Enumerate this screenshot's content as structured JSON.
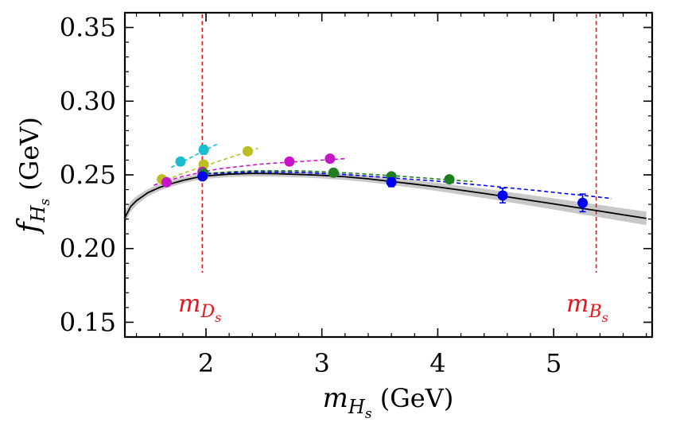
{
  "chart_data": {
    "type": "scatter",
    "title": "",
    "xlabel": {
      "main": "m",
      "sub": "H",
      "subsub": "s",
      "unit": "(GeV)"
    },
    "ylabel": {
      "main": "f",
      "sub": "H",
      "subsub": "s",
      "unit": "(GeV)"
    },
    "xlim": [
      1.3,
      5.85
    ],
    "ylim": [
      0.14,
      0.36
    ],
    "x_ticks": [
      2,
      3,
      4,
      5
    ],
    "x_tick_labels": [
      "2",
      "3",
      "4",
      "5"
    ],
    "y_ticks": [
      0.15,
      0.2,
      0.25,
      0.3,
      0.35
    ],
    "y_tick_labels": [
      "0.15",
      "0.20",
      "0.25",
      "0.30",
      "0.35"
    ],
    "grid": false,
    "markers": [
      {
        "x": 1.968,
        "label": {
          "main": "m",
          "sub": "D",
          "subsub": "s"
        },
        "color": "#e8141b"
      },
      {
        "x": 5.367,
        "label": {
          "main": "m",
          "sub": "B",
          "subsub": "s"
        },
        "color": "#e8141b"
      }
    ],
    "fit_curve": {
      "name": "continuum fit",
      "color": "#000000",
      "band_color": "#c8c8c8",
      "points": [
        [
          1.3,
          0.221
        ],
        [
          1.35,
          0.2285
        ],
        [
          1.4,
          0.2325
        ],
        [
          1.5,
          0.238
        ],
        [
          1.6,
          0.2415
        ],
        [
          1.7,
          0.244
        ],
        [
          1.8,
          0.2462
        ],
        [
          1.9,
          0.248
        ],
        [
          2.0,
          0.2493
        ],
        [
          2.2,
          0.2505
        ],
        [
          2.4,
          0.251
        ],
        [
          2.6,
          0.2508
        ],
        [
          2.8,
          0.2503
        ],
        [
          3.0,
          0.2497
        ],
        [
          3.2,
          0.2487
        ],
        [
          3.4,
          0.2473
        ],
        [
          3.6,
          0.2455
        ],
        [
          3.8,
          0.2437
        ],
        [
          4.0,
          0.2418
        ],
        [
          4.2,
          0.2396
        ],
        [
          4.4,
          0.2374
        ],
        [
          4.6,
          0.2351
        ],
        [
          4.8,
          0.2327
        ],
        [
          5.0,
          0.2303
        ],
        [
          5.2,
          0.2278
        ],
        [
          5.4,
          0.2254
        ],
        [
          5.6,
          0.2229
        ],
        [
          5.8,
          0.2205
        ]
      ],
      "band_halfwidth": [
        0.004,
        0.0035,
        0.003,
        0.0025,
        0.0022,
        0.002,
        0.002,
        0.002,
        0.002,
        0.002,
        0.002,
        0.002,
        0.002,
        0.0021,
        0.0022,
        0.0023,
        0.0024,
        0.0026,
        0.0028,
        0.003,
        0.0032,
        0.0034,
        0.0036,
        0.0038,
        0.004,
        0.0042,
        0.0044,
        0.0046
      ]
    },
    "series": [
      {
        "name": "cyan",
        "color": "#17becf",
        "points": [
          {
            "x": 1.78,
            "y": 0.259,
            "err": 0
          },
          {
            "x": 1.98,
            "y": 0.267,
            "err": 0.003
          }
        ],
        "fit_line": [
          [
            1.7,
            0.255
          ],
          [
            2.1,
            0.271
          ]
        ]
      },
      {
        "name": "olive",
        "color": "#bcbd22",
        "points": [
          {
            "x": 1.62,
            "y": 0.247,
            "err": 0
          },
          {
            "x": 1.98,
            "y": 0.257,
            "err": 0
          },
          {
            "x": 2.36,
            "y": 0.266,
            "err": 0
          }
        ],
        "fit_line": [
          [
            1.55,
            0.243
          ],
          [
            1.8,
            0.251
          ],
          [
            2.1,
            0.259
          ],
          [
            2.45,
            0.268
          ]
        ]
      },
      {
        "name": "magenta",
        "color": "#c815c8",
        "points": [
          {
            "x": 1.66,
            "y": 0.245,
            "err": 0
          },
          {
            "x": 1.97,
            "y": 0.252,
            "err": 0
          },
          {
            "x": 2.72,
            "y": 0.259,
            "err": 0
          },
          {
            "x": 3.07,
            "y": 0.261,
            "err": 0
          }
        ],
        "fit_line": [
          [
            1.55,
            0.243
          ],
          [
            1.8,
            0.249
          ],
          [
            2.1,
            0.254
          ],
          [
            2.5,
            0.2575
          ],
          [
            2.9,
            0.2595
          ],
          [
            3.2,
            0.261
          ]
        ]
      },
      {
        "name": "green",
        "color": "#1e7f1e",
        "points": [
          {
            "x": 1.98,
            "y": 0.251,
            "err": 0
          },
          {
            "x": 3.1,
            "y": 0.2515,
            "err": 0
          },
          {
            "x": 3.6,
            "y": 0.249,
            "err": 0
          },
          {
            "x": 4.1,
            "y": 0.247,
            "err": 0.002
          }
        ],
        "fit_line": [
          [
            1.95,
            0.2508
          ],
          [
            2.4,
            0.2528
          ],
          [
            2.8,
            0.2528
          ],
          [
            3.2,
            0.2514
          ],
          [
            3.6,
            0.2495
          ],
          [
            4.0,
            0.2472
          ],
          [
            4.3,
            0.2455
          ]
        ]
      },
      {
        "name": "blue",
        "color": "#0000ee",
        "points": [
          {
            "x": 1.97,
            "y": 0.249,
            "err": 0
          },
          {
            "x": 3.6,
            "y": 0.245,
            "err": 0.003
          },
          {
            "x": 4.56,
            "y": 0.236,
            "err": 0.005
          },
          {
            "x": 5.25,
            "y": 0.231,
            "err": 0.006
          }
        ],
        "fit_line": [
          [
            1.95,
            0.2505
          ],
          [
            2.4,
            0.252
          ],
          [
            2.8,
            0.2517
          ],
          [
            3.2,
            0.2502
          ],
          [
            3.6,
            0.248
          ],
          [
            4.0,
            0.2457
          ],
          [
            4.4,
            0.2428
          ],
          [
            4.8,
            0.2398
          ],
          [
            5.2,
            0.2365
          ],
          [
            5.5,
            0.234
          ]
        ]
      }
    ]
  }
}
